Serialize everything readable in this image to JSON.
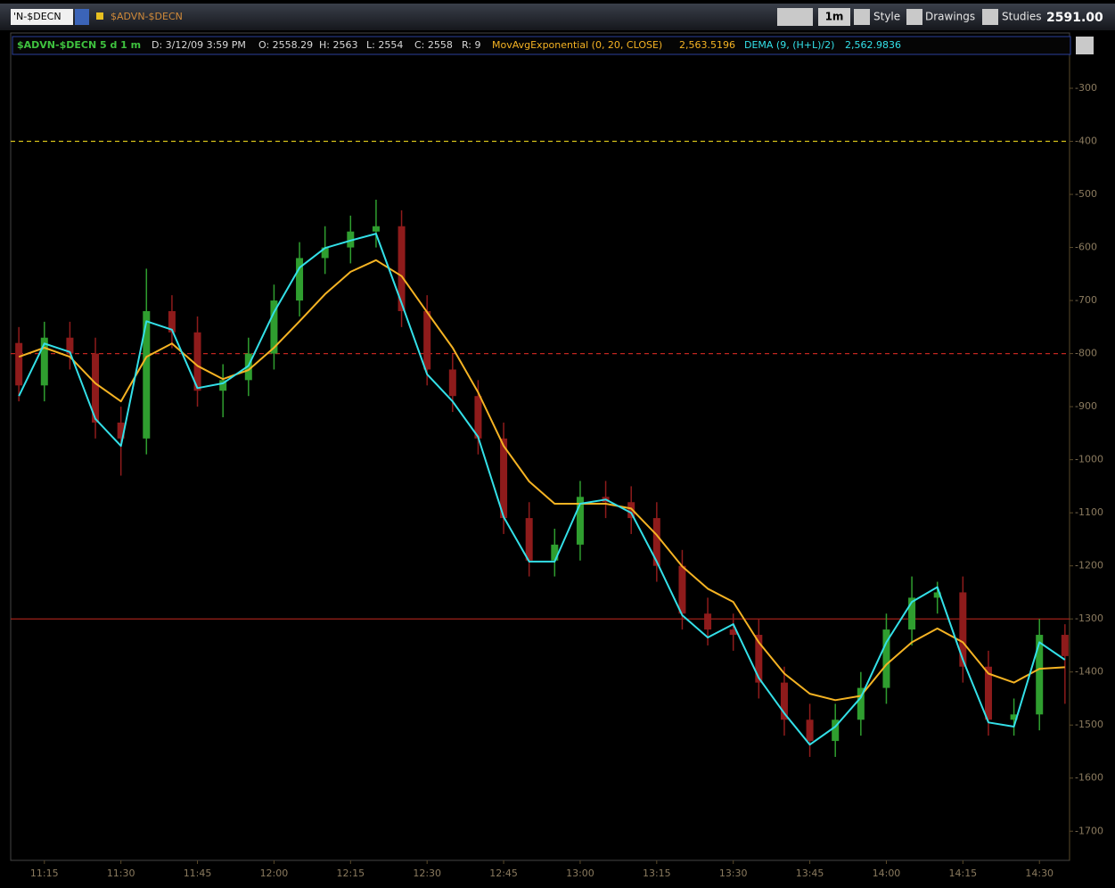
{
  "toolbar": {
    "symbol": "'N-$DECN",
    "symbol_name": "$ADVN-$DECN",
    "aggregation": "1m",
    "style": "Style",
    "drawings": "Drawings",
    "studies": "Studies",
    "last_price": "2591.00"
  },
  "header": {
    "symbol_info": "$ADVN-$DECN 5 d 1 m",
    "date": "D: 3/12/09 3:59 PM",
    "open": "O: 2558.29",
    "high": "H: 2563",
    "low": "L: 2554",
    "close": "C: 2558",
    "range": "R: 9",
    "study1_value": "2,563.5196",
    "study2_value": "2,562.9836"
  },
  "chart_data": {
    "type": "candlestick",
    "x": [
      670,
      675,
      680,
      685,
      690,
      695,
      700,
      705,
      710,
      715,
      720,
      725,
      730,
      735,
      740,
      745,
      750,
      755,
      760,
      765,
      770,
      775,
      780,
      785,
      790,
      795,
      800,
      805,
      810,
      815,
      820,
      825,
      830,
      835,
      840,
      845,
      850,
      855,
      860,
      865,
      870,
      875
    ],
    "open": [
      -780,
      -860,
      -770,
      -800,
      -930,
      -960,
      -720,
      -760,
      -870,
      -850,
      -800,
      -700,
      -620,
      -600,
      -570,
      -560,
      -720,
      -830,
      -880,
      -960,
      -1110,
      -1190,
      -1160,
      -1070,
      -1080,
      -1110,
      -1200,
      -1290,
      -1320,
      -1330,
      -1420,
      -1490,
      -1530,
      -1490,
      -1430,
      -1320,
      -1260,
      -1250,
      -1390,
      -1490,
      -1480,
      -1330
    ],
    "high": [
      -750,
      -740,
      -740,
      -770,
      -900,
      -640,
      -690,
      -730,
      -820,
      -770,
      -670,
      -590,
      -560,
      -540,
      -510,
      -530,
      -690,
      -800,
      -850,
      -930,
      -1080,
      -1130,
      -1040,
      -1040,
      -1050,
      -1080,
      -1170,
      -1260,
      -1290,
      -1300,
      -1390,
      -1460,
      -1460,
      -1400,
      -1290,
      -1220,
      -1230,
      -1220,
      -1360,
      -1450,
      -1300,
      -1310
    ],
    "low": [
      -890,
      -890,
      -830,
      -960,
      -1030,
      -990,
      -790,
      -900,
      -920,
      -880,
      -830,
      -730,
      -650,
      -630,
      -600,
      -750,
      -860,
      -910,
      -990,
      -1140,
      -1220,
      -1220,
      -1190,
      -1110,
      -1140,
      -1230,
      -1320,
      -1350,
      -1360,
      -1450,
      -1520,
      -1560,
      -1560,
      -1520,
      -1460,
      -1350,
      -1290,
      -1420,
      -1520,
      -1520,
      -1510,
      -1460
    ],
    "close": [
      -860,
      -770,
      -800,
      -930,
      -960,
      -720,
      -760,
      -870,
      -850,
      -800,
      -700,
      -620,
      -600,
      -570,
      -560,
      -720,
      -830,
      -880,
      -960,
      -1110,
      -1190,
      -1160,
      -1070,
      -1080,
      -1110,
      -1200,
      -1290,
      -1320,
      -1330,
      -1420,
      -1490,
      -1530,
      -1490,
      -1430,
      -1320,
      -1260,
      -1250,
      -1390,
      -1490,
      -1480,
      -1330,
      -1370
    ],
    "up_color": "#2f9e2f",
    "down_color": "#8e1b1b",
    "series": [
      {
        "name": "MovAvgExponential (0, 20, CLOSE)",
        "color": "#f5b323",
        "values": [
          -806,
          -789,
          -806,
          -856,
          -890,
          -806,
          -781,
          -823,
          -848,
          -831,
          -789,
          -739,
          -688,
          -646,
          -624,
          -654,
          -722,
          -789,
          -873,
          -974,
          -1041,
          -1083,
          -1083,
          -1083,
          -1092,
          -1142,
          -1201,
          -1243,
          -1268,
          -1344,
          -1403,
          -1441,
          -1453,
          -1445,
          -1386,
          -1344,
          -1318,
          -1344,
          -1403,
          -1420,
          -1394,
          -1391
        ]
      },
      {
        "name": "DEMA (9, (H+L)/2)",
        "color": "#33e0e8",
        "values": [
          -880,
          -781,
          -797,
          -923,
          -974,
          -739,
          -755,
          -865,
          -856,
          -823,
          -722,
          -638,
          -601,
          -587,
          -574,
          -705,
          -839,
          -890,
          -957,
          -1108,
          -1192,
          -1192,
          -1083,
          -1075,
          -1100,
          -1192,
          -1293,
          -1335,
          -1310,
          -1411,
          -1478,
          -1537,
          -1503,
          -1448,
          -1344,
          -1268,
          -1240,
          -1377,
          -1495,
          -1503,
          -1344,
          -1377
        ]
      }
    ],
    "reference_lines": [
      {
        "value": -400,
        "color": "#d6c21a",
        "style": "dashed"
      },
      {
        "value": -800,
        "color": "#c0251f",
        "style": "dashed"
      },
      {
        "value": -1300,
        "color": "#b3241c",
        "style": "solid"
      }
    ],
    "xlim": [
      668.4,
      875.9
    ],
    "xticks": [
      {
        "value": 675,
        "label": "11:15"
      },
      {
        "value": 690,
        "label": "11:30"
      },
      {
        "value": 705,
        "label": "11:45"
      },
      {
        "value": 720,
        "label": "12:00"
      },
      {
        "value": 735,
        "label": "12:15"
      },
      {
        "value": 750,
        "label": "12:30"
      },
      {
        "value": 765,
        "label": "12:45"
      },
      {
        "value": 780,
        "label": "13:00"
      },
      {
        "value": 795,
        "label": "13:15"
      },
      {
        "value": 810,
        "label": "13:30"
      },
      {
        "value": 825,
        "label": "13:45"
      },
      {
        "value": 840,
        "label": "14:00"
      },
      {
        "value": 855,
        "label": "14:15"
      },
      {
        "value": 870,
        "label": "14:30"
      }
    ],
    "ylim": [
      -1755,
      -258
    ],
    "yticks": [
      -300,
      -400,
      -500,
      -600,
      -700,
      -800,
      -900,
      -1000,
      -1100,
      -1200,
      -1300,
      -1400,
      -1500,
      -1600,
      -1700
    ]
  }
}
